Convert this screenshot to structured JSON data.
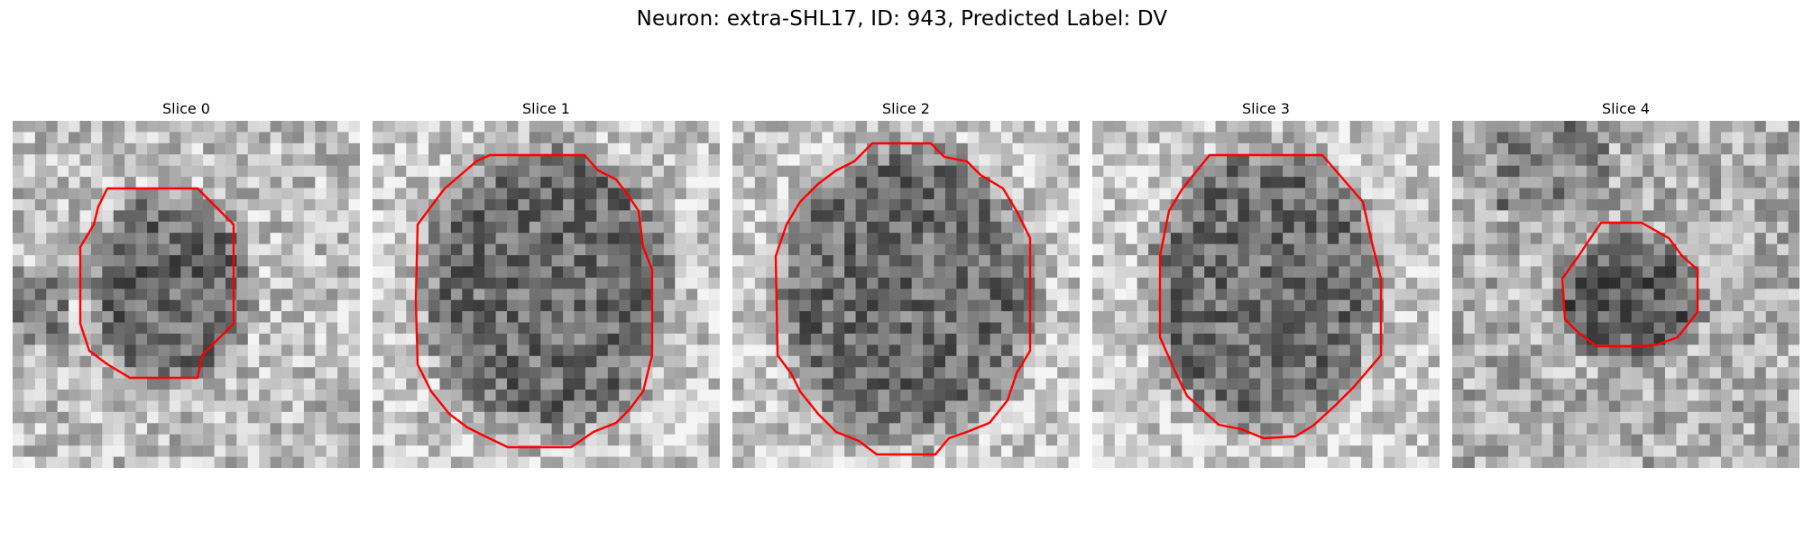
{
  "figure": {
    "title": "Neuron: extra-SHL17, ID: 943, Predicted Label: DV"
  },
  "panels": [
    {
      "title": "Slice 0"
    },
    {
      "title": "Slice 1"
    },
    {
      "title": "Slice 2"
    },
    {
      "title": "Slice 3"
    },
    {
      "title": "Slice 4"
    }
  ],
  "colors": {
    "contour": "#ff0000",
    "background": "#ffffff"
  }
}
